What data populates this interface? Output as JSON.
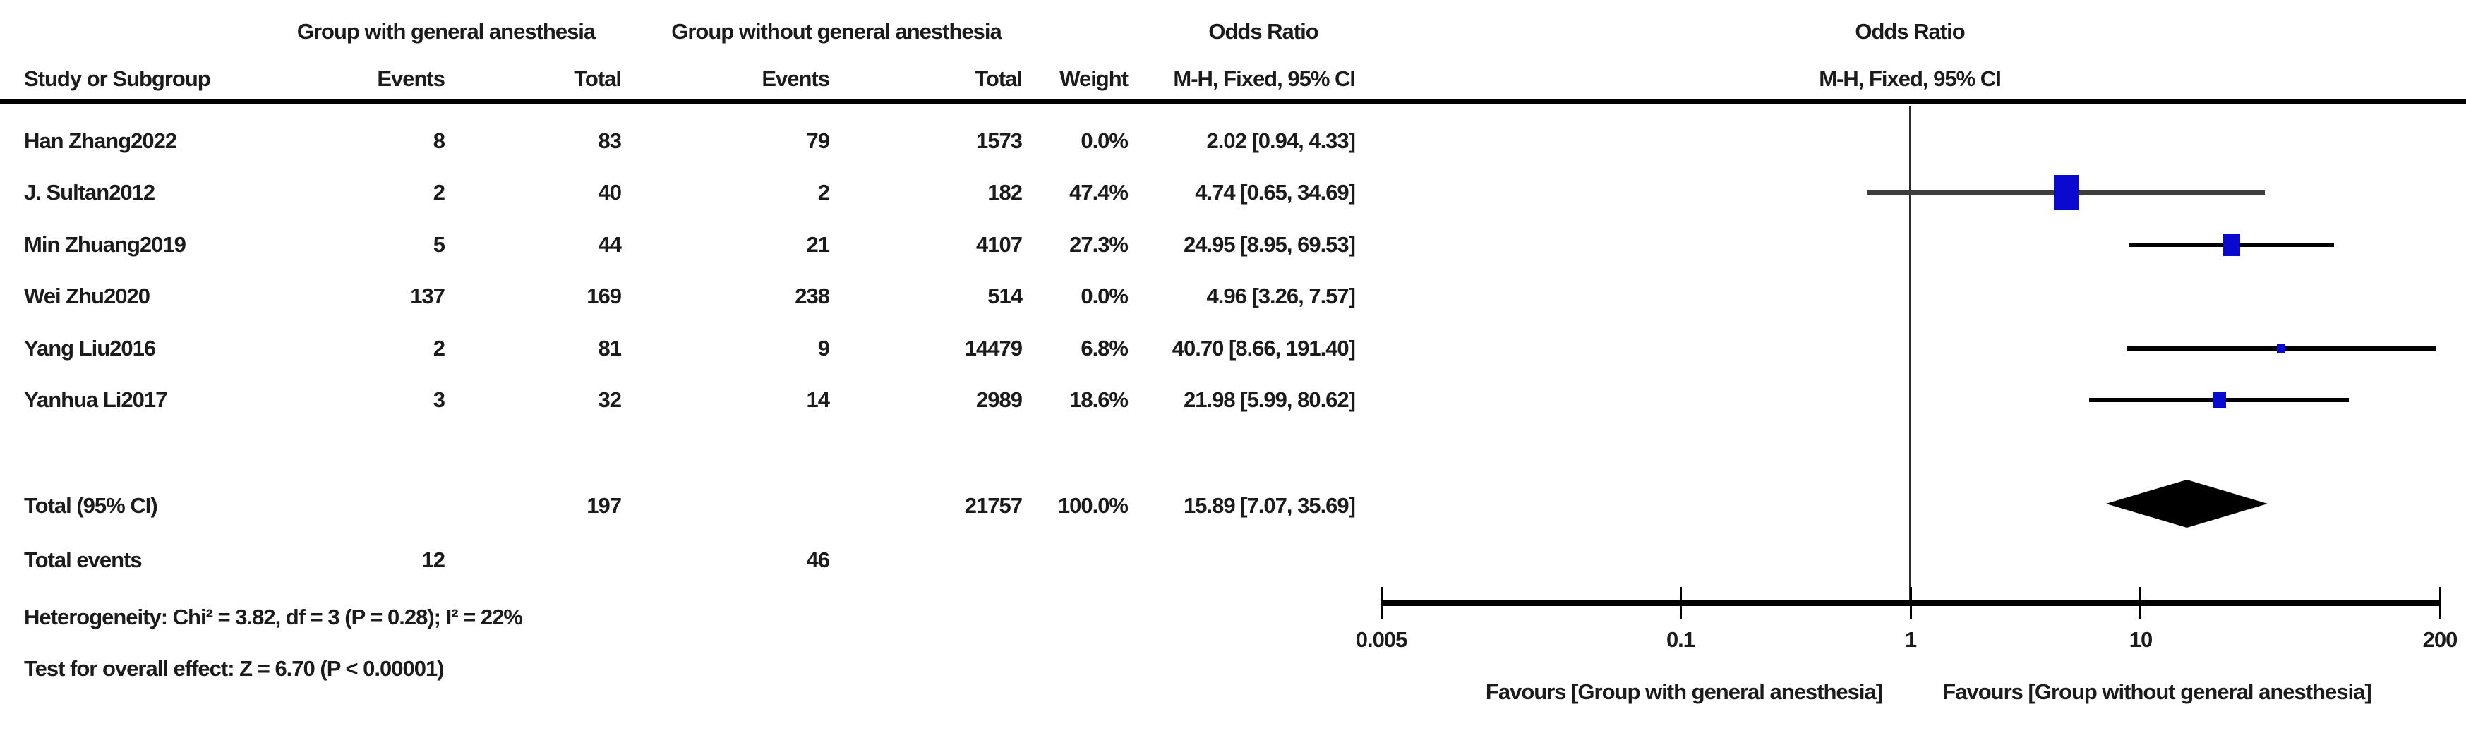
{
  "table": {
    "headers": {
      "group1": "Group with general anesthesia",
      "group2": "Group without general anesthesia",
      "odds_ratio_left": "Odds Ratio",
      "odds_ratio_right": "Odds Ratio",
      "study": "Study or Subgroup",
      "events1": "Events",
      "total1": "Total",
      "events2": "Events",
      "total2": "Total",
      "weight": "Weight",
      "mh_left": "M-H, Fixed, 95% CI",
      "mh_right": "M-H, Fixed, 95% CI"
    },
    "total_row": {
      "label": "Total (95% CI)",
      "total1": "197",
      "total2": "21757",
      "weight": "100.0%",
      "ci_label": "15.89 [7.07, 35.69]"
    },
    "total_events_row": {
      "label": "Total events",
      "events1": "12",
      "events2": "46"
    },
    "heterogeneity": "Heterogeneity: Chi² = 3.82, df = 3 (P = 0.28); I² = 22%",
    "overall_effect": "Test for overall effect: Z = 6.70 (P < 0.00001)"
  },
  "chart_data": {
    "type": "scatter",
    "subtype": "forest-plot",
    "effect_measure": "Odds Ratio, M-H, Fixed, 95% CI",
    "x_scale": "log",
    "xlim": [
      0.005,
      200
    ],
    "x_ticks": [
      "0.005",
      "0.1",
      "1",
      "10",
      "200"
    ],
    "x_tick_values": [
      0.005,
      0.1,
      1,
      10,
      200
    ],
    "no_effect_value": 1,
    "favours_left": "Favours [Group with general anesthesia]",
    "favours_right": "Favours [Group without general anesthesia]",
    "studies": [
      {
        "name": "Han Zhang2022",
        "events1": "8",
        "total1": "83",
        "events2": "79",
        "total2": "1573",
        "weight": "0.0%",
        "weight_value": 0.0,
        "ci_label": "2.02 [0.94, 4.33]",
        "or": 2.02,
        "ci_low": 0.94,
        "ci_high": 4.33,
        "plotted": false
      },
      {
        "name": "J. Sultan2012",
        "events1": "2",
        "total1": "40",
        "events2": "2",
        "total2": "182",
        "weight": "47.4%",
        "weight_value": 47.4,
        "ci_label": "4.74 [0.65, 34.69]",
        "or": 4.74,
        "ci_low": 0.65,
        "ci_high": 34.69,
        "plotted": true,
        "line_color": "#3d3d3d"
      },
      {
        "name": "Min Zhuang2019",
        "events1": "5",
        "total1": "44",
        "events2": "21",
        "total2": "4107",
        "weight": "27.3%",
        "weight_value": 27.3,
        "ci_label": "24.95 [8.95, 69.53]",
        "or": 24.95,
        "ci_low": 8.95,
        "ci_high": 69.53,
        "plotted": true,
        "line_color": "#000000"
      },
      {
        "name": "Wei Zhu2020",
        "events1": "137",
        "total1": "169",
        "events2": "238",
        "total2": "514",
        "weight": "0.0%",
        "weight_value": 0.0,
        "ci_label": "4.96 [3.26, 7.57]",
        "or": 4.96,
        "ci_low": 3.26,
        "ci_high": 7.57,
        "plotted": false
      },
      {
        "name": "Yang Liu2016",
        "events1": "2",
        "total1": "81",
        "events2": "9",
        "total2": "14479",
        "weight": "6.8%",
        "weight_value": 6.8,
        "ci_label": "40.70 [8.66, 191.40]",
        "or": 40.7,
        "ci_low": 8.66,
        "ci_high": 191.4,
        "plotted": true,
        "line_color": "#000000"
      },
      {
        "name": "Yanhua Li2017",
        "events1": "3",
        "total1": "32",
        "events2": "14",
        "total2": "2989",
        "weight": "18.6%",
        "weight_value": 18.6,
        "ci_label": "21.98 [5.99, 80.62]",
        "or": 21.98,
        "ci_low": 5.99,
        "ci_high": 80.62,
        "plotted": true,
        "line_color": "#000000"
      }
    ],
    "summary": {
      "label": "Total (95% CI)",
      "or": 15.89,
      "ci_low": 7.07,
      "ci_high": 35.69,
      "marker": "diamond"
    }
  },
  "colors": {
    "square_blue": "#0909cf",
    "diamond_black": "#000000",
    "axis_black": "#000000",
    "text": "#1b1b1b"
  }
}
